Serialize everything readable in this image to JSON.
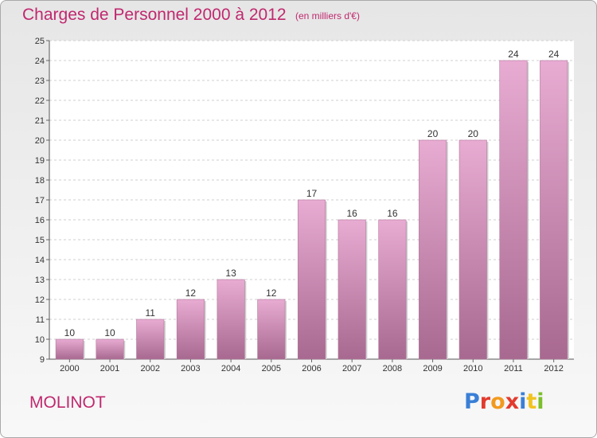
{
  "header": {
    "title": "Charges de Personnel 2000 à 2012",
    "subtitle": "(en milliers d'€)"
  },
  "footer": {
    "commune": "MOLINOT",
    "logo_text": "Proxiti",
    "logo_colors": [
      "#3a7fd6",
      "#e23b2e",
      "#f29a1f",
      "#e23b2e",
      "#3a7fd6",
      "#f2c31f",
      "#7bbf2a"
    ]
  },
  "colors": {
    "title": "#c0286e",
    "bar_light": "#e8abd2",
    "bar_dark": "#a86990"
  },
  "chart_data": {
    "type": "bar",
    "categories": [
      "2000",
      "2001",
      "2002",
      "2003",
      "2004",
      "2005",
      "2006",
      "2007",
      "2008",
      "2009",
      "2010",
      "2011",
      "2012"
    ],
    "values": [
      10,
      10,
      11,
      12,
      13,
      12,
      17,
      16,
      16,
      20,
      20,
      24,
      24
    ],
    "ylim": [
      9,
      25
    ],
    "yticks": [
      9,
      10,
      11,
      12,
      13,
      14,
      15,
      16,
      17,
      18,
      19,
      20,
      21,
      22,
      23,
      24,
      25
    ],
    "grid": true
  }
}
